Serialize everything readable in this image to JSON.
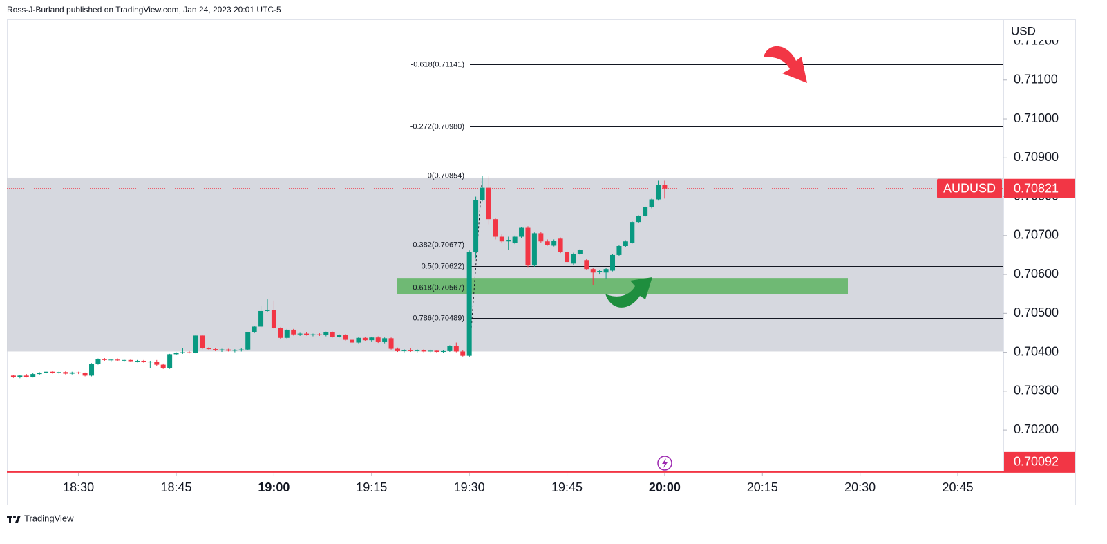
{
  "header": "Ross-J-Burland published on TradingView.com, Jan 24, 2023 20:01 UTC-5",
  "footer": "TradingView",
  "chart_data": {
    "type": "candlestick",
    "currency": "USD",
    "symbol": "AUDUSD",
    "up_color": "#089981",
    "down_color": "#f23645",
    "x": [
      "18:20",
      "18:21",
      "18:22",
      "18:23",
      "18:24",
      "18:25",
      "18:26",
      "18:27",
      "18:28",
      "18:29",
      "18:30",
      "18:31",
      "18:32",
      "18:33",
      "18:34",
      "18:35",
      "18:36",
      "18:37",
      "18:38",
      "18:39",
      "18:40",
      "18:41",
      "18:42",
      "18:43",
      "18:44",
      "18:45",
      "18:46",
      "18:47",
      "18:48",
      "18:49",
      "18:50",
      "18:51",
      "18:52",
      "18:53",
      "18:54",
      "18:55",
      "18:56",
      "18:57",
      "18:58",
      "18:59",
      "19:00",
      "19:01",
      "19:02",
      "19:03",
      "19:04",
      "19:05",
      "19:06",
      "19:07",
      "19:08",
      "19:09",
      "19:10",
      "19:11",
      "19:12",
      "19:13",
      "19:14",
      "19:15",
      "19:16",
      "19:17",
      "19:18",
      "19:19",
      "19:20",
      "19:21",
      "19:22",
      "19:23",
      "19:24",
      "19:25",
      "19:26",
      "19:27",
      "19:28",
      "19:29",
      "19:30",
      "19:31",
      "19:32",
      "19:33",
      "19:34",
      "19:35",
      "19:36",
      "19:37",
      "19:38",
      "19:39",
      "19:40",
      "19:41",
      "19:42",
      "19:43",
      "19:44",
      "19:45",
      "19:46",
      "19:47",
      "19:48",
      "19:49",
      "19:50",
      "19:51",
      "19:52",
      "19:53",
      "19:54",
      "19:55",
      "19:56",
      "19:57",
      "19:58",
      "19:59",
      "20:00"
    ],
    "open": [
      0.7034,
      0.70336,
      0.7034,
      0.70337,
      0.70344,
      0.70347,
      0.7035,
      0.70347,
      0.70349,
      0.70345,
      0.70348,
      0.70346,
      0.7034,
      0.7037,
      0.70382,
      0.7038,
      0.70381,
      0.70379,
      0.7038,
      0.70377,
      0.70378,
      0.70375,
      0.70376,
      0.70368,
      0.70359,
      0.70395,
      0.70398,
      0.704,
      0.70399,
      0.70443,
      0.70411,
      0.70408,
      0.70405,
      0.70407,
      0.70404,
      0.70406,
      0.70407,
      0.70451,
      0.70466,
      0.70506,
      0.70508,
      0.70462,
      0.70437,
      0.70458,
      0.70446,
      0.70448,
      0.70445,
      0.70446,
      0.70444,
      0.70451,
      0.7044,
      0.70445,
      0.70432,
      0.70425,
      0.70437,
      0.70431,
      0.70438,
      0.70426,
      0.70436,
      0.70409,
      0.70403,
      0.70406,
      0.70403,
      0.70405,
      0.70402,
      0.70404,
      0.70401,
      0.70403,
      0.70416,
      0.70402,
      0.70391,
      0.70658,
      0.70791,
      0.70823,
      0.70742,
      0.70697,
      0.70685,
      0.70681,
      0.70697,
      0.7072,
      0.70623,
      0.70706,
      0.70685,
      0.70674,
      0.70692,
      0.70657,
      0.70628,
      0.70653,
      0.70637,
      0.70614,
      0.70609,
      0.70605,
      0.7061,
      0.7065,
      0.70673,
      0.70681,
      0.70735,
      0.7075,
      0.70773,
      0.70793,
      0.7083
    ],
    "high": [
      0.70342,
      0.70342,
      0.70344,
      0.70346,
      0.70349,
      0.70352,
      0.70352,
      0.70351,
      0.70351,
      0.7035,
      0.7035,
      0.70348,
      0.70372,
      0.70384,
      0.70385,
      0.70383,
      0.70384,
      0.70382,
      0.70382,
      0.7038,
      0.7038,
      0.70378,
      0.7038,
      0.70371,
      0.70396,
      0.704,
      0.70411,
      0.70403,
      0.70444,
      0.70445,
      0.70413,
      0.70411,
      0.70409,
      0.70409,
      0.70408,
      0.7041,
      0.70452,
      0.70468,
      0.7052,
      0.70536,
      0.70533,
      0.70464,
      0.7046,
      0.7046,
      0.7045,
      0.70451,
      0.70448,
      0.70449,
      0.70453,
      0.70453,
      0.70447,
      0.70447,
      0.70435,
      0.7044,
      0.7044,
      0.7044,
      0.70441,
      0.70438,
      0.70438,
      0.70412,
      0.70408,
      0.7041,
      0.70408,
      0.70408,
      0.70407,
      0.70406,
      0.70405,
      0.70418,
      0.70425,
      0.70405,
      0.70662,
      0.708,
      0.70853,
      0.70853,
      0.70745,
      0.70703,
      0.70697,
      0.707,
      0.70722,
      0.70724,
      0.70708,
      0.7071,
      0.7069,
      0.7069,
      0.70695,
      0.7066,
      0.70656,
      0.70666,
      0.7064,
      0.70617,
      0.70612,
      0.70617,
      0.70652,
      0.70675,
      0.70688,
      0.70737,
      0.70752,
      0.70775,
      0.70795,
      0.70841,
      0.70841
    ],
    "low": [
      0.70334,
      0.70333,
      0.70335,
      0.70335,
      0.70341,
      0.70344,
      0.70345,
      0.70344,
      0.70343,
      0.70343,
      0.70344,
      0.70338,
      0.70338,
      0.70368,
      0.70378,
      0.70377,
      0.70378,
      0.70376,
      0.70375,
      0.70374,
      0.70373,
      0.7036,
      0.70365,
      0.70357,
      0.70357,
      0.70393,
      0.70396,
      0.70397,
      0.70397,
      0.70408,
      0.70405,
      0.70403,
      0.70401,
      0.70402,
      0.704,
      0.70402,
      0.70405,
      0.70449,
      0.70464,
      0.70503,
      0.7046,
      0.70435,
      0.70434,
      0.70443,
      0.70442,
      0.70443,
      0.70441,
      0.70442,
      0.70441,
      0.70438,
      0.70437,
      0.7043,
      0.70422,
      0.70423,
      0.70429,
      0.70426,
      0.70424,
      0.70423,
      0.70407,
      0.70401,
      0.704,
      0.70401,
      0.704,
      0.704,
      0.70399,
      0.70399,
      0.70398,
      0.70401,
      0.704,
      0.70389,
      0.70389,
      0.70642,
      0.70788,
      0.70729,
      0.7069,
      0.7068,
      0.70664,
      0.70678,
      0.70694,
      0.70619,
      0.7062,
      0.70682,
      0.70674,
      0.70672,
      0.70655,
      0.7063,
      0.70625,
      0.7065,
      0.70612,
      0.70572,
      0.706,
      0.7059,
      0.70608,
      0.70648,
      0.7067,
      0.70679,
      0.70733,
      0.70748,
      0.7077,
      0.7079,
      0.70795
    ],
    "close": [
      0.70336,
      0.7034,
      0.70337,
      0.70344,
      0.70347,
      0.7035,
      0.70347,
      0.70349,
      0.70345,
      0.70348,
      0.70346,
      0.7034,
      0.7037,
      0.70382,
      0.7038,
      0.70381,
      0.70379,
      0.7038,
      0.70377,
      0.70378,
      0.70375,
      0.70376,
      0.70368,
      0.70359,
      0.70395,
      0.70398,
      0.704,
      0.70399,
      0.70443,
      0.70411,
      0.70408,
      0.70405,
      0.70407,
      0.70404,
      0.70406,
      0.70407,
      0.70451,
      0.70466,
      0.70506,
      0.70508,
      0.70462,
      0.70437,
      0.70458,
      0.70446,
      0.70448,
      0.70445,
      0.70446,
      0.70444,
      0.70451,
      0.7044,
      0.70445,
      0.70432,
      0.70425,
      0.70437,
      0.70431,
      0.70438,
      0.70426,
      0.70436,
      0.70409,
      0.70403,
      0.70406,
      0.70403,
      0.70405,
      0.70402,
      0.70404,
      0.70401,
      0.70403,
      0.70416,
      0.70402,
      0.70391,
      0.70658,
      0.70791,
      0.70823,
      0.70742,
      0.70697,
      0.70685,
      0.70689,
      0.70697,
      0.7072,
      0.70623,
      0.70706,
      0.70685,
      0.70676,
      0.70687,
      0.70657,
      0.70632,
      0.70653,
      0.70664,
      0.70614,
      0.70605,
      0.70609,
      0.70614,
      0.7065,
      0.70673,
      0.70685,
      0.70735,
      0.7075,
      0.70773,
      0.70793,
      0.7083,
      0.70821
    ],
    "xlim": [
      "18:19",
      "20:52"
    ],
    "xticks": [
      "18:30",
      "18:45",
      "19:00",
      "19:15",
      "19:30",
      "19:45",
      "20:00",
      "20:15",
      "20:30",
      "20:45"
    ],
    "ylim": [
      0.7009,
      0.71256
    ],
    "yticks": [
      {
        "value": 0.702,
        "label": "0.70200"
      },
      {
        "value": 0.703,
        "label": "0.70300"
      },
      {
        "value": 0.704,
        "label": "0.70400"
      },
      {
        "value": 0.705,
        "label": "0.70500"
      },
      {
        "value": 0.706,
        "label": "0.70600"
      },
      {
        "value": 0.707,
        "label": "0.70700"
      },
      {
        "value": 0.708,
        "label": "0.70800"
      },
      {
        "value": 0.709,
        "label": "0.70900"
      },
      {
        "value": 0.71,
        "label": "0.71000"
      },
      {
        "value": 0.711,
        "label": "0.71100"
      },
      {
        "value": 0.712,
        "label": "0.71200"
      }
    ],
    "fib_levels": [
      {
        "value": 0.71141,
        "label": "-0.618(0.71141)"
      },
      {
        "value": 0.7098,
        "label": "-0.272(0.70980)"
      },
      {
        "value": 0.70854,
        "label": "0(0.70854)"
      },
      {
        "value": 0.70677,
        "label": "0.382(0.70677)"
      },
      {
        "value": 0.70622,
        "label": "0.5(0.70622)"
      },
      {
        "value": 0.70567,
        "label": "0.618(0.70567)"
      },
      {
        "value": 0.70489,
        "label": "0.786(0.70489)"
      }
    ],
    "range_box": {
      "top": 0.70849,
      "bottom": 0.70402
    },
    "zone": {
      "top": 0.70591,
      "bottom": 0.70549
    },
    "last_price": 0.70821,
    "low_price": 0.70092
  }
}
